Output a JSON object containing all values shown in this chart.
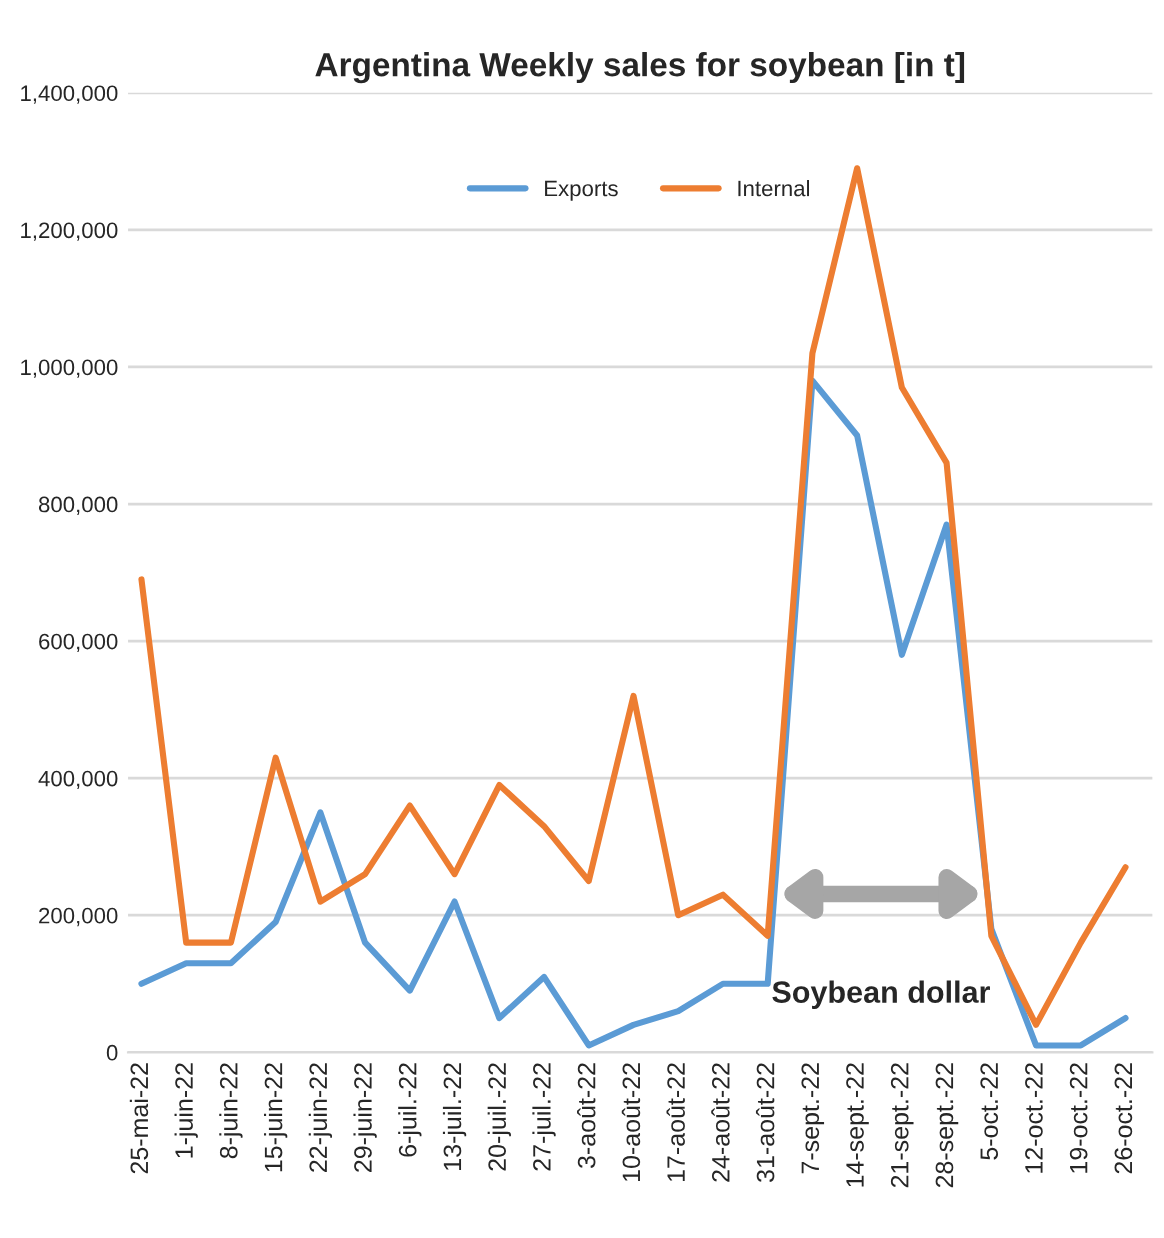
{
  "chart_data": {
    "type": "line",
    "title": "Argentina Weekly sales for soybean [in t]",
    "categories": [
      "25-mai-22",
      "1-juin-22",
      "8-juin-22",
      "15-juin-22",
      "22-juin-22",
      "29-juin-22",
      "6-juil.-22",
      "13-juil.-22",
      "20-juil.-22",
      "27-juil.-22",
      "3-août-22",
      "10-août-22",
      "17-août-22",
      "24-août-22",
      "31-août-22",
      "7-sept.-22",
      "14-sept.-22",
      "21-sept.-22",
      "28-sept.-22",
      "5-oct.-22",
      "12-oct.-22",
      "19-oct.-22",
      "26-oct.-22"
    ],
    "series": [
      {
        "name": "Exports",
        "color": "#5b9bd5",
        "values": [
          100000,
          130000,
          130000,
          190000,
          350000,
          160000,
          90000,
          220000,
          50000,
          110000,
          10000,
          40000,
          60000,
          100000,
          100000,
          980000,
          900000,
          580000,
          770000,
          180000,
          10000,
          10000,
          50000
        ]
      },
      {
        "name": "Internal",
        "color": "#ed7d31",
        "values": [
          690000,
          160000,
          160000,
          430000,
          220000,
          260000,
          360000,
          260000,
          390000,
          330000,
          250000,
          520000,
          200000,
          230000,
          170000,
          1020000,
          1290000,
          970000,
          860000,
          170000,
          40000,
          160000,
          270000
        ]
      }
    ],
    "ylim": [
      0,
      1400000
    ],
    "yticks": [
      0,
      {
        "value": 200000,
        "label": "200,000"
      },
      {
        "value": 400000,
        "label": "400,000"
      },
      {
        "value": 600000,
        "label": "600,000"
      },
      {
        "value": 800000,
        "label": "800,000"
      },
      {
        "value": 1000000,
        "label": "1,000,000"
      },
      {
        "value": 1200000,
        "label": "1,200,000"
      },
      {
        "value": 1400000,
        "label": "1,400,000"
      }
    ],
    "grid": "y",
    "legend": "top",
    "marker": "none",
    "line_style": "solid",
    "annotations": [
      "Soybean dollar"
    ]
  }
}
